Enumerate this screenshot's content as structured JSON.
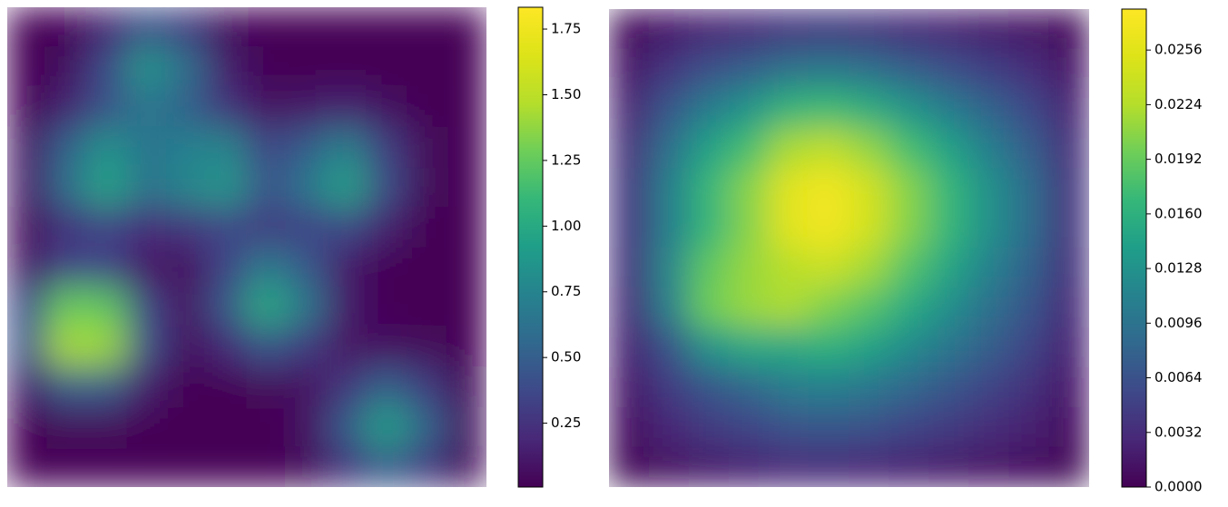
{
  "chart_data": [
    {
      "type": "heatmap",
      "cmap": "viridis",
      "clim": [
        0.007,
        1.833
      ],
      "cticks": [
        0.25,
        {
          "value": 0.5,
          "label": "0.50"
        },
        0.75,
        {
          "value": 1,
          "label": "1.00"
        },
        1.25,
        {
          "value": 1.5,
          "label": "1.50"
        },
        1.75
      ],
      "z": [
        [
          0.01,
          0.03,
          0.18,
          0.43,
          0.29,
          0.06,
          0.01,
          0.01,
          0.01,
          0.01,
          0.01,
          0.01
        ],
        [
          0.01,
          0.06,
          0.38,
          0.87,
          0.6,
          0.13,
          0.02,
          0.01,
          0.01,
          0.01,
          0.01,
          0.01
        ],
        [
          0.02,
          0.16,
          0.43,
          0.66,
          0.52,
          0.25,
          0.08,
          0.11,
          0.16,
          0.07,
          0.02,
          0.01
        ],
        [
          0.1,
          0.52,
          0.84,
          0.63,
          0.72,
          0.76,
          0.35,
          0.49,
          0.72,
          0.3,
          0.04,
          0.01
        ],
        [
          0.12,
          0.61,
          0.97,
          0.63,
          0.77,
          0.88,
          0.43,
          0.65,
          0.96,
          0.39,
          0.05,
          0.01
        ],
        [
          0.05,
          0.24,
          0.35,
          0.21,
          0.27,
          0.36,
          0.29,
          0.34,
          0.39,
          0.15,
          0.02,
          0.01
        ],
        [
          0.1,
          0.35,
          0.35,
          0.1,
          0.07,
          0.35,
          0.69,
          0.47,
          0.12,
          0.02,
          0.01,
          0.01
        ],
        [
          0.38,
          1.27,
          1.24,
          0.35,
          0.09,
          0.46,
          1.02,
          0.65,
          0.12,
          0.02,
          0.01,
          0.01
        ],
        [
          0.43,
          1.44,
          1.41,
          0.4,
          0.06,
          0.2,
          0.44,
          0.29,
          0.09,
          0.08,
          0.05,
          0.01
        ],
        [
          0.14,
          0.48,
          0.47,
          0.13,
          0.02,
          0.02,
          0.05,
          0.07,
          0.27,
          0.52,
          0.3,
          0.05
        ],
        [
          0.01,
          0.04,
          0.04,
          0.02,
          0.01,
          0.01,
          0.01,
          0.08,
          0.48,
          0.95,
          0.54,
          0.09
        ],
        [
          0.01,
          0.01,
          0.01,
          0.01,
          0.01,
          0.01,
          0.01,
          0.04,
          0.26,
          0.5,
          0.29,
          0.05
        ]
      ]
    },
    {
      "type": "heatmap",
      "cmap": "viridis",
      "clim": [
        0,
        0.028
      ],
      "cticks": [
        {
          "value": 0,
          "label": "0.0000"
        },
        0.0032,
        0.0064,
        0.0096,
        0.0128,
        {
          "value": 0.016,
          "label": "0.0160"
        },
        0.0192,
        0.0224,
        0.0256
      ],
      "z": [
        [
          0.0006,
          0.0017,
          0.0026,
          0.0031,
          0.0039,
          0.0041,
          0.0038,
          0.0031,
          0.0026,
          0.0019,
          0.0014,
          0.0006
        ],
        [
          0.0015,
          0.004,
          0.0061,
          0.0075,
          0.0094,
          0.0099,
          0.009,
          0.0075,
          0.0061,
          0.0047,
          0.0033,
          0.0015
        ],
        [
          0.0026,
          0.0068,
          0.0106,
          0.013,
          0.0162,
          0.0171,
          0.0155,
          0.013,
          0.0106,
          0.008,
          0.0056,
          0.0026
        ],
        [
          0.0035,
          0.0092,
          0.0143,
          0.0176,
          0.0219,
          0.0231,
          0.021,
          0.0176,
          0.0143,
          0.0109,
          0.0076,
          0.0035
        ],
        [
          0.004,
          0.0108,
          0.0167,
          0.0205,
          0.0256,
          0.027,
          0.0245,
          0.0205,
          0.0167,
          0.0127,
          0.0089,
          0.004
        ],
        [
          0.004,
          0.0108,
          0.0167,
          0.0205,
          0.0256,
          0.027,
          0.0245,
          0.0205,
          0.0167,
          0.0127,
          0.0089,
          0.004
        ],
        [
          0.0036,
          0.0116,
          0.0188,
          0.0212,
          0.0227,
          0.0239,
          0.0217,
          0.0182,
          0.0148,
          0.0112,
          0.0079,
          0.0036
        ],
        [
          0.003,
          0.011,
          0.0195,
          0.0213,
          0.0221,
          0.0201,
          0.0183,
          0.0153,
          0.0125,
          0.0094,
          0.0066,
          0.003
        ],
        [
          0.0024,
          0.0064,
          0.0129,
          0.0151,
          0.0152,
          0.016,
          0.0145,
          0.0121,
          0.0099,
          0.0075,
          0.0053,
          0.0024
        ],
        [
          0.0017,
          0.0044,
          0.0068,
          0.0084,
          0.0105,
          0.011,
          0.01,
          0.0084,
          0.0068,
          0.0052,
          0.0036,
          0.0017
        ],
        [
          0.001,
          0.0028,
          0.0043,
          0.0052,
          0.0065,
          0.0069,
          0.0063,
          0.0052,
          0.0043,
          0.0032,
          0.0023,
          0.001
        ],
        [
          0.0005,
          0.0012,
          0.0019,
          0.0023,
          0.0029,
          0.003,
          0.0027,
          0.0023,
          0.0019,
          0.0014,
          0.001,
          0.0005
        ]
      ]
    }
  ]
}
